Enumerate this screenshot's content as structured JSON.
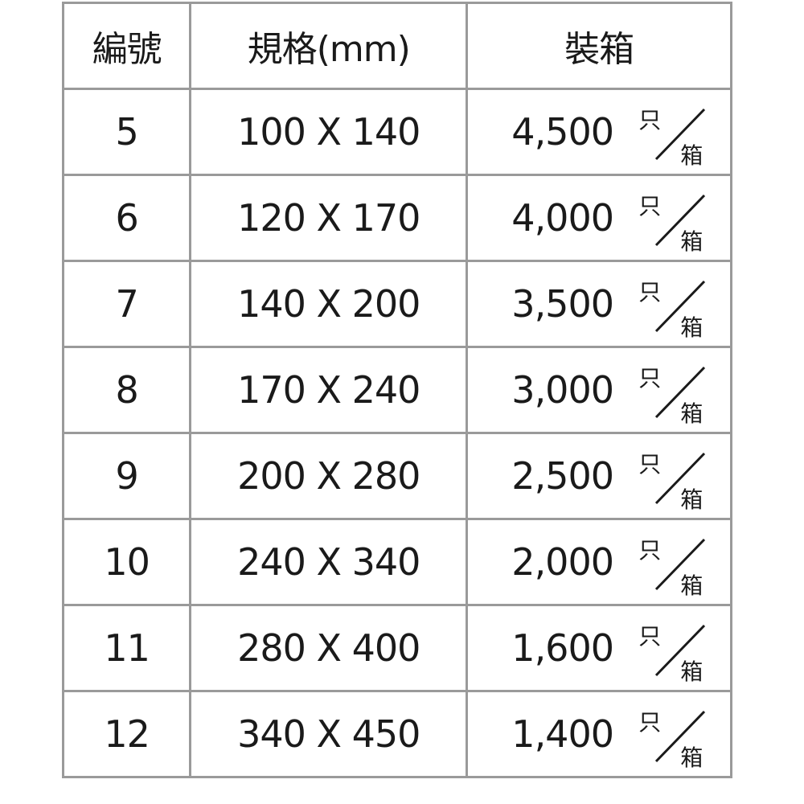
{
  "headers": [
    "編號",
    "規格(mm)",
    "裝箱"
  ],
  "unit": {
    "top": "只",
    "bottom": "箱"
  },
  "rows": [
    {
      "no": "5",
      "size": "100 X 140",
      "pack": "4,500"
    },
    {
      "no": "6",
      "size": "120 X 170",
      "pack": "4,000"
    },
    {
      "no": "7",
      "size": "140 X 200",
      "pack": "3,500"
    },
    {
      "no": "8",
      "size": "170 X 240",
      "pack": "3,000"
    },
    {
      "no": "9",
      "size": "200 X 280",
      "pack": "2,500"
    },
    {
      "no": "10",
      "size": "240 X 340",
      "pack": "2,000"
    },
    {
      "no": "11",
      "size": "280 X 400",
      "pack": "1,600"
    },
    {
      "no": "12",
      "size": "340 X 450",
      "pack": "1,400"
    }
  ],
  "colors": {
    "border": "#9a9a9a",
    "text": "#1a1a1a"
  }
}
